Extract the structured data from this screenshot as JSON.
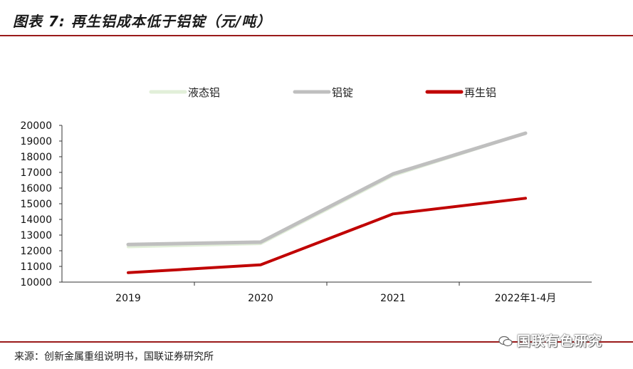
{
  "header": {
    "title": "图表 7: 再生铝成本低于铝锭（元/吨）"
  },
  "footer": {
    "source": "来源：创新金属重组说明书，国联证券研究所",
    "watermark": "国联有色研究"
  },
  "chart_data": {
    "type": "line",
    "categories": [
      "2019",
      "2020",
      "2021",
      "2022年1-4月"
    ],
    "series": [
      {
        "name": "液态铝",
        "values": [
          12250,
          12450,
          16800,
          19500
        ],
        "color": "#e2efd9"
      },
      {
        "name": "铝锭",
        "values": [
          12400,
          12550,
          16900,
          19500
        ],
        "color": "#bfbfbf"
      },
      {
        "name": "再生铝",
        "values": [
          10600,
          11100,
          14350,
          15350
        ],
        "color": "#c00000"
      }
    ],
    "ylim": [
      10000,
      20000
    ],
    "yticks": [
      "10000",
      "11000",
      "12000",
      "13000",
      "14000",
      "15000",
      "16000",
      "17000",
      "18000",
      "19000",
      "20000"
    ],
    "grid": false,
    "legend": "top"
  }
}
